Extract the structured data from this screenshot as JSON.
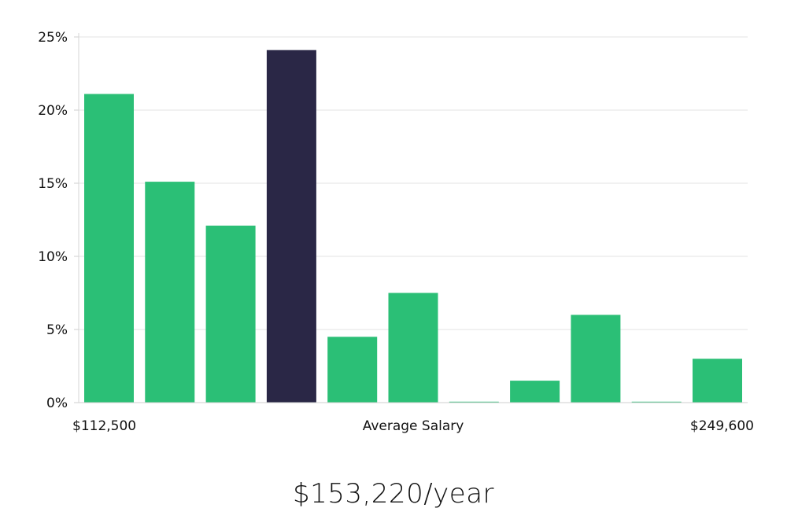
{
  "colors": {
    "bar": "#2bbf76",
    "highlight": "#2a2746",
    "grid": "#e3e3e3"
  },
  "chart_data": {
    "type": "bar",
    "ylim": [
      0,
      25
    ],
    "y_ticks": [
      "0%",
      "5%",
      "10%",
      "15%",
      "20%",
      "25%"
    ],
    "y_tick_values": [
      0,
      5,
      10,
      15,
      20,
      25
    ],
    "values": [
      21.1,
      15.1,
      12.1,
      24.1,
      4.5,
      7.5,
      0.05,
      1.5,
      6.0,
      0.05,
      3.0
    ],
    "highlight_index": 3,
    "x_min_label": "$112,500",
    "x_max_label": "$249,600",
    "xlabel": "Average Salary",
    "grid": true
  },
  "salary": "$153,220/year"
}
